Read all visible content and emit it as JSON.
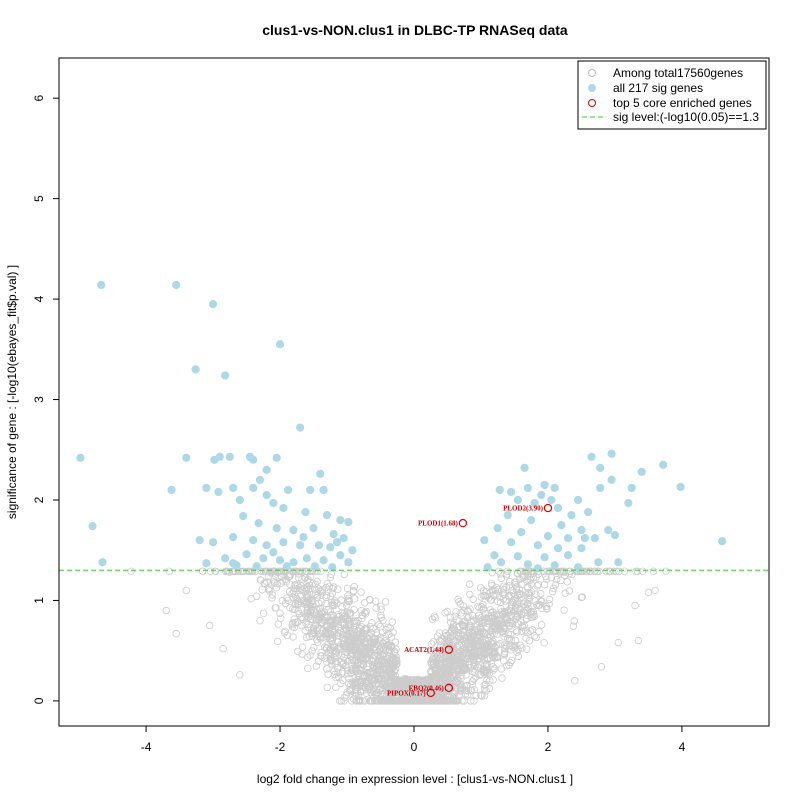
{
  "chart_data": {
    "type": "scatter",
    "title": "clus1-vs-NON.clus1 in DLBC-TP RNASeq data",
    "xlabel": "log2 fold change in expression level : [clus1-vs-NON.clus1 ]",
    "ylabel": "significance of gene : [-log10(ebayes_fit$p.val) ]",
    "xlim": [
      -5.3,
      5.3
    ],
    "ylim": [
      -0.25,
      6.4
    ],
    "xticks": [
      -4,
      -2,
      0,
      2,
      4
    ],
    "yticks": [
      0,
      1,
      2,
      3,
      4,
      5,
      6
    ],
    "sig_level": 1.3,
    "colors": {
      "background_points": "#cccccc",
      "sig_points": "#add8e6",
      "core_points": "#dd0000",
      "sig_line": "#33cc33"
    },
    "legend": {
      "position": "top-right",
      "entries": [
        {
          "label": "Among total17560genes",
          "marker": "open-circle-grey"
        },
        {
          "label": "all 217 sig genes",
          "marker": "filled-circle-lightblue"
        },
        {
          "label": "top 5 core enriched genes",
          "marker": "open-circle-red"
        },
        {
          "label": "sig level:(-log10(0.05)==1.3",
          "marker": "dashed-line-green"
        }
      ]
    },
    "sig_genes": [
      [
        -4.67,
        4.14
      ],
      [
        -3.55,
        4.14
      ],
      [
        -3.0,
        3.95
      ],
      [
        -2.0,
        3.55
      ],
      [
        -3.26,
        3.3
      ],
      [
        -2.82,
        3.24
      ],
      [
        -1.7,
        2.72
      ],
      [
        -4.98,
        2.42
      ],
      [
        -3.4,
        2.42
      ],
      [
        -2.9,
        2.43
      ],
      [
        -2.75,
        2.43
      ],
      [
        -2.98,
        2.4
      ],
      [
        -2.45,
        2.43
      ],
      [
        -2.4,
        2.4
      ],
      [
        -2.05,
        2.42
      ],
      [
        -2.2,
        2.3
      ],
      [
        -1.4,
        2.26
      ],
      [
        -2.3,
        2.2
      ],
      [
        -3.62,
        2.1
      ],
      [
        -3.1,
        2.12
      ],
      [
        -2.92,
        2.08
      ],
      [
        -2.7,
        2.12
      ],
      [
        -2.4,
        2.12
      ],
      [
        -2.2,
        2.05
      ],
      [
        -1.88,
        2.1
      ],
      [
        -1.55,
        2.1
      ],
      [
        -1.35,
        2.1
      ],
      [
        -2.6,
        2.0
      ],
      [
        -2.1,
        1.97
      ],
      [
        -1.95,
        1.92
      ],
      [
        -1.62,
        1.88
      ],
      [
        -1.3,
        1.85
      ],
      [
        -1.1,
        1.8
      ],
      [
        -0.98,
        1.78
      ],
      [
        -2.55,
        1.84
      ],
      [
        -2.32,
        1.77
      ],
      [
        -2.05,
        1.72
      ],
      [
        -1.8,
        1.7
      ],
      [
        -1.5,
        1.72
      ],
      [
        -1.2,
        1.66
      ],
      [
        -4.8,
        1.74
      ],
      [
        -3.2,
        1.6
      ],
      [
        -3.0,
        1.58
      ],
      [
        -2.7,
        1.63
      ],
      [
        -2.4,
        1.6
      ],
      [
        -2.2,
        1.55
      ],
      [
        -1.95,
        1.58
      ],
      [
        -1.7,
        1.55
      ],
      [
        -1.42,
        1.55
      ],
      [
        -1.15,
        1.58
      ],
      [
        -0.92,
        1.5
      ],
      [
        -2.82,
        1.42
      ],
      [
        -2.5,
        1.46
      ],
      [
        -2.25,
        1.42
      ],
      [
        -2.0,
        1.4
      ],
      [
        -1.8,
        1.38
      ],
      [
        -1.6,
        1.42
      ],
      [
        -1.35,
        1.4
      ],
      [
        -1.1,
        1.45
      ],
      [
        -0.98,
        1.38
      ],
      [
        -4.65,
        1.38
      ],
      [
        -3.1,
        1.37
      ],
      [
        -2.65,
        1.35
      ],
      [
        -2.35,
        1.34
      ],
      [
        -1.9,
        1.34
      ],
      [
        -1.48,
        1.34
      ],
      [
        -1.22,
        1.33
      ],
      [
        -2.1,
        1.48
      ],
      [
        -1.65,
        1.63
      ],
      [
        -1.25,
        1.53
      ],
      [
        -2.7,
        1.37
      ],
      [
        -1.05,
        1.62
      ],
      [
        2.95,
        2.46
      ],
      [
        2.65,
        2.43
      ],
      [
        3.72,
        2.35
      ],
      [
        2.78,
        2.32
      ],
      [
        1.65,
        2.32
      ],
      [
        3.4,
        2.28
      ],
      [
        2.95,
        2.2
      ],
      [
        1.95,
        2.15
      ],
      [
        3.98,
        2.13
      ],
      [
        1.28,
        2.1
      ],
      [
        1.7,
        2.12
      ],
      [
        2.1,
        2.12
      ],
      [
        2.78,
        2.12
      ],
      [
        3.25,
        2.12
      ],
      [
        1.45,
        2.08
      ],
      [
        1.9,
        2.05
      ],
      [
        2.05,
        2.0
      ],
      [
        2.45,
        2.0
      ],
      [
        1.55,
        2.0
      ],
      [
        2.15,
        1.92
      ],
      [
        1.8,
        1.97
      ],
      [
        3.2,
        1.97
      ],
      [
        2.6,
        1.88
      ],
      [
        2.35,
        1.85
      ],
      [
        1.4,
        1.85
      ],
      [
        1.75,
        1.8
      ],
      [
        2.2,
        1.75
      ],
      [
        2.5,
        1.7
      ],
      [
        2.9,
        1.7
      ],
      [
        1.25,
        1.72
      ],
      [
        1.6,
        1.68
      ],
      [
        2.0,
        1.64
      ],
      [
        2.3,
        1.62
      ],
      [
        2.7,
        1.62
      ],
      [
        3.0,
        1.65
      ],
      [
        1.05,
        1.6
      ],
      [
        1.45,
        1.58
      ],
      [
        1.85,
        1.55
      ],
      [
        2.15,
        1.52
      ],
      [
        2.5,
        1.52
      ],
      [
        4.6,
        1.59
      ],
      [
        1.2,
        1.45
      ],
      [
        1.55,
        1.44
      ],
      [
        1.95,
        1.43
      ],
      [
        2.3,
        1.45
      ],
      [
        2.75,
        1.38
      ],
      [
        3.05,
        1.38
      ],
      [
        1.3,
        1.38
      ],
      [
        1.7,
        1.36
      ],
      [
        2.1,
        1.35
      ],
      [
        2.45,
        1.33
      ],
      [
        1.1,
        1.33
      ],
      [
        1.85,
        1.32
      ],
      [
        2.55,
        1.62
      ]
    ],
    "core_genes": [
      {
        "label": "PLOD2(3.90)",
        "x": 2.0,
        "y": 1.92
      },
      {
        "label": "PLOD1(1.68)",
        "x": 0.73,
        "y": 1.77
      },
      {
        "label": "ACAT2(1.44)",
        "x": 0.52,
        "y": 0.51
      },
      {
        "label": "EBO2(0.46)",
        "x": 0.52,
        "y": 0.13
      },
      {
        "label": "PIPOX(0.17)",
        "x": 0.25,
        "y": 0.08
      }
    ]
  }
}
